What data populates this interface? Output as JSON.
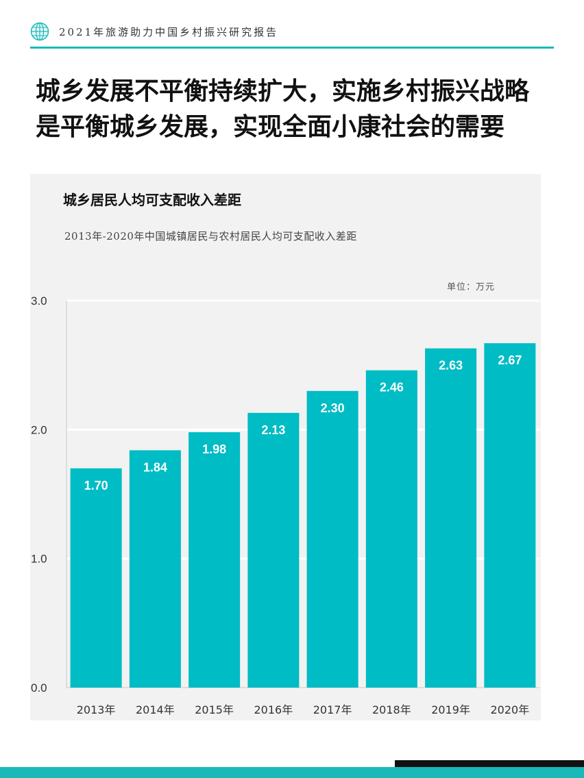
{
  "header": {
    "report_title": "2021年旅游助力中国乡村振兴研究报告",
    "logo_icon": "globe-icon"
  },
  "headline": {
    "line1": "城乡发展不平衡持续扩大，实施乡村振兴战略",
    "line2": "是平衡城乡发展，实现全面小康社会的需要"
  },
  "colors": {
    "accent": "#19b9b9",
    "bar": "#00bcc4",
    "panel": "#f2f2f2"
  },
  "chart_data": {
    "type": "bar",
    "title": "城乡居民人均可支配收入差距",
    "subtitle": "2013年-2020年中国城镇居民与农村居民人均可支配收入差距",
    "unit_label": "单位：万元",
    "categories": [
      "2013年",
      "2014年",
      "2015年",
      "2016年",
      "2017年",
      "2018年",
      "2019年",
      "2020年"
    ],
    "values": [
      1.7,
      1.84,
      1.98,
      2.13,
      2.3,
      2.46,
      2.63,
      2.67
    ],
    "data_labels": [
      "1.70",
      "1.84",
      "1.98",
      "2.13",
      "2.30",
      "2.46",
      "2.63",
      "2.67"
    ],
    "y_ticks": [
      0,
      1,
      2,
      3
    ],
    "y_tick_labels": [
      "0.0",
      "1.0",
      "2.0",
      "3.0"
    ],
    "ylim": [
      0,
      3
    ],
    "grid": true,
    "legend": "none"
  }
}
